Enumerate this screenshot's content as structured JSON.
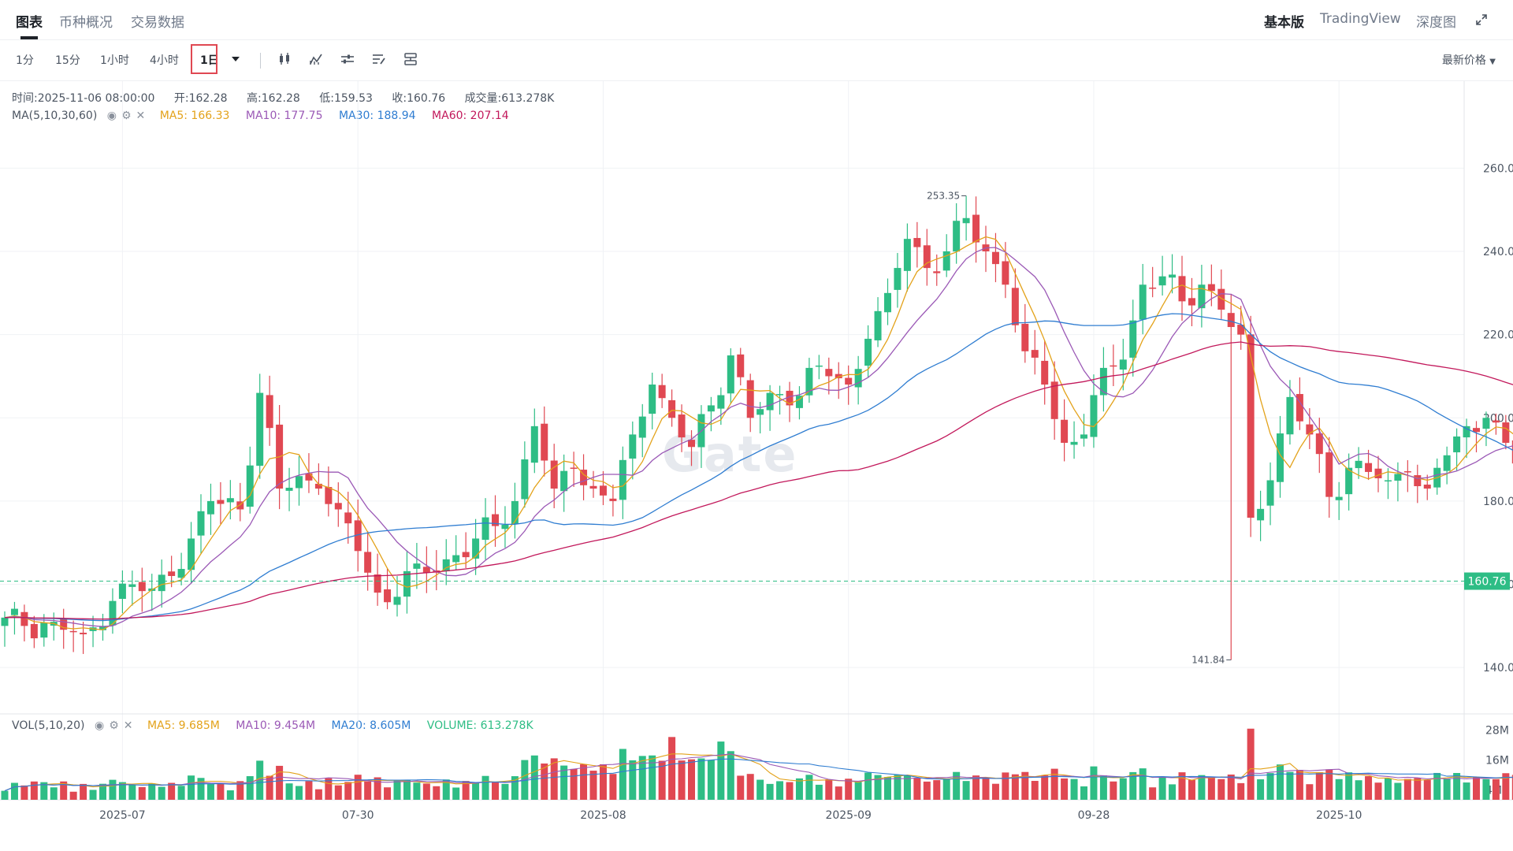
{
  "tabs": [
    {
      "label": "图表",
      "active": true
    },
    {
      "label": "币种概况",
      "active": false
    },
    {
      "label": "交易数据",
      "active": false
    }
  ],
  "view_tabs": [
    {
      "label": "基本版",
      "active": true
    },
    {
      "label": "TradingView",
      "active": false
    },
    {
      "label": "深度图",
      "active": false
    }
  ],
  "timeframes": [
    {
      "label": "1分",
      "active": false
    },
    {
      "label": "15分",
      "active": false
    },
    {
      "label": "1小时",
      "active": false
    },
    {
      "label": "4小时",
      "active": false
    },
    {
      "label": "1日",
      "active": true
    }
  ],
  "toolbar_icons": [
    "candle-type-icon",
    "indicator-icon",
    "settings-sliders-icon",
    "draw-tools-icon",
    "layout-icon"
  ],
  "price_type": "最新价格",
  "ohlc": {
    "time_label": "时间:",
    "time": "2025-11-06 08:00:00",
    "open_label": "开:",
    "open": "162.28",
    "high_label": "高:",
    "high": "162.28",
    "low_label": "低:",
    "low": "159.53",
    "close_label": "收:",
    "close": "160.76",
    "volume_label": "成交量:",
    "volume": "613.278K"
  },
  "ma_legend": {
    "name": "MA(5,10,30,60)",
    "items": [
      {
        "text": "MA5: 166.33",
        "color": "#e3a21a"
      },
      {
        "text": "MA10: 177.75",
        "color": "#9b59b6"
      },
      {
        "text": "MA30: 188.94",
        "color": "#2f7dd1"
      },
      {
        "text": "MA60: 207.14",
        "color": "#c2185b"
      }
    ]
  },
  "vol_legend": {
    "name": "VOL(5,10,20)",
    "items": [
      {
        "text": "MA5: 9.685M",
        "color": "#e3a21a"
      },
      {
        "text": "MA10: 9.454M",
        "color": "#9b59b6"
      },
      {
        "text": "MA20: 8.605M",
        "color": "#2f7dd1"
      },
      {
        "text": "VOLUME: 613.278K",
        "color": "#2ebd85"
      }
    ]
  },
  "watermark": "Gate",
  "colors": {
    "up": "#2ebd85",
    "down": "#e04852",
    "grid": "#f0f2f5",
    "axis_text": "#4c5562"
  },
  "chart_data": {
    "type": "candlestick",
    "price_axis": {
      "min": 130,
      "max": 272,
      "ticks": [
        140,
        160,
        180,
        200,
        220,
        240,
        260
      ]
    },
    "volume_axis": {
      "max_m": 30,
      "ticks": [
        {
          "value": 4,
          "label": "4M"
        },
        {
          "value": 16,
          "label": "16M"
        },
        {
          "value": 28,
          "label": "28M"
        }
      ]
    },
    "x_labels": [
      {
        "index": 12,
        "label": "2025-07"
      },
      {
        "index": 36,
        "label": "07-30"
      },
      {
        "index": 61,
        "label": "2025-08"
      },
      {
        "index": 86,
        "label": "2025-09"
      },
      {
        "index": 111,
        "label": "09-28"
      },
      {
        "index": 136,
        "label": "2025-10"
      }
    ],
    "current_price": 160.76,
    "current_price_label": "160.76",
    "max_annotation": {
      "index": 98,
      "value": 253.35,
      "label": "253.35"
    },
    "min_annotation": {
      "index": 125,
      "value": 141.84,
      "label": "141.84"
    },
    "anchors": [
      [
        0,
        152
      ],
      [
        2,
        150
      ],
      [
        5,
        151
      ],
      [
        8,
        148
      ],
      [
        10,
        150
      ],
      [
        11,
        156
      ],
      [
        13,
        160
      ],
      [
        15,
        159
      ],
      [
        17,
        162
      ],
      [
        19,
        171
      ],
      [
        21,
        180
      ],
      [
        24,
        178
      ],
      [
        26,
        206
      ],
      [
        28,
        183
      ],
      [
        30,
        186
      ],
      [
        32,
        183
      ],
      [
        34,
        178
      ],
      [
        36,
        168
      ],
      [
        38,
        158
      ],
      [
        40,
        157
      ],
      [
        42,
        165
      ],
      [
        44,
        163
      ],
      [
        46,
        167
      ],
      [
        48,
        171
      ],
      [
        50,
        174
      ],
      [
        52,
        180
      ],
      [
        54,
        198
      ],
      [
        56,
        183
      ],
      [
        58,
        188
      ],
      [
        60,
        183
      ],
      [
        62,
        180
      ],
      [
        64,
        196
      ],
      [
        66,
        208
      ],
      [
        68,
        200
      ],
      [
        70,
        193
      ],
      [
        72,
        203
      ],
      [
        74,
        215
      ],
      [
        76,
        200
      ],
      [
        78,
        206
      ],
      [
        80,
        203
      ],
      [
        82,
        212
      ],
      [
        84,
        210
      ],
      [
        86,
        208
      ],
      [
        88,
        219
      ],
      [
        90,
        230
      ],
      [
        92,
        243
      ],
      [
        94,
        236
      ],
      [
        96,
        240
      ],
      [
        98,
        248
      ],
      [
        100,
        240
      ],
      [
        102,
        232
      ],
      [
        104,
        216
      ],
      [
        106,
        208
      ],
      [
        108,
        194
      ],
      [
        110,
        196
      ],
      [
        112,
        212
      ],
      [
        114,
        214
      ],
      [
        116,
        232
      ],
      [
        118,
        234
      ],
      [
        120,
        228
      ],
      [
        122,
        232
      ],
      [
        124,
        226
      ],
      [
        126,
        220
      ],
      [
        127,
        176
      ],
      [
        129,
        185
      ],
      [
        131,
        205
      ],
      [
        133,
        196
      ],
      [
        135,
        181
      ],
      [
        137,
        188
      ],
      [
        139,
        187
      ],
      [
        141,
        185
      ],
      [
        143,
        187
      ],
      [
        145,
        183
      ],
      [
        147,
        191
      ],
      [
        149,
        198
      ],
      [
        151,
        200
      ],
      [
        153,
        194
      ],
      [
        155,
        186
      ],
      [
        157,
        184
      ],
      [
        159,
        181
      ],
      [
        161,
        180
      ],
      [
        162,
        163
      ],
      [
        163,
        161
      ],
      [
        164,
        157
      ],
      [
        165,
        160.76
      ]
    ],
    "ma_series": [
      {
        "name": "MA5",
        "color": "#e3a21a",
        "period": 5
      },
      {
        "name": "MA10",
        "color": "#9b59b6",
        "period": 10
      },
      {
        "name": "MA30",
        "color": "#2f7dd1",
        "period": 30
      },
      {
        "name": "MA60",
        "color": "#c2185b",
        "period": 60
      }
    ],
    "candle_count": 166,
    "volume_unit": "M"
  }
}
